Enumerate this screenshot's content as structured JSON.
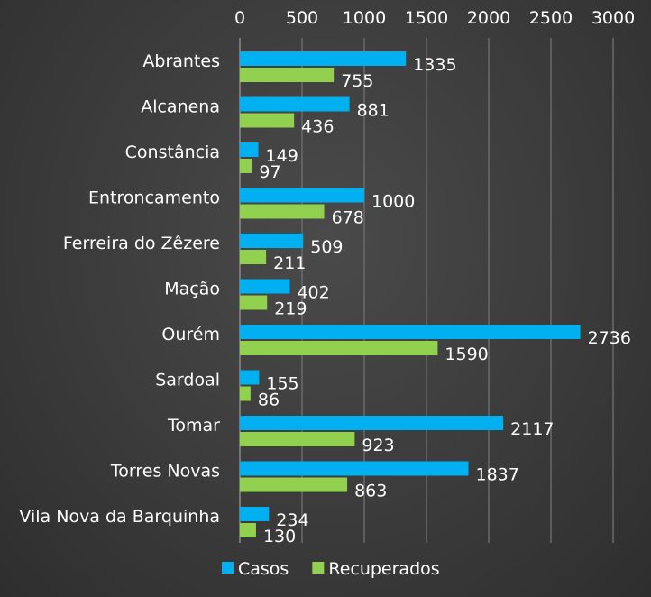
{
  "chart_data": {
    "type": "bar",
    "orientation": "horizontal",
    "categories": [
      "Abrantes",
      "Alcanena",
      "Constância",
      "Entroncamento",
      "Ferreira do Zêzere",
      "Mação",
      "Ourém",
      "Sardoal",
      "Tomar",
      "Torres Novas",
      "Vila Nova da Barquinha"
    ],
    "series": [
      {
        "name": "Casos",
        "color": "#00b0f0",
        "values": [
          1335,
          881,
          149,
          1000,
          509,
          402,
          2736,
          155,
          2117,
          1837,
          234
        ]
      },
      {
        "name": "Recuperados",
        "color": "#92d050",
        "values": [
          755,
          436,
          97,
          678,
          211,
          219,
          1590,
          86,
          923,
          863,
          130
        ]
      }
    ],
    "xlim": [
      0,
      3000
    ],
    "xticks": [
      0,
      500,
      1000,
      1500,
      2000,
      2500,
      3000
    ],
    "xaxis_position": "top",
    "grid": true,
    "legend_position": "bottom"
  }
}
